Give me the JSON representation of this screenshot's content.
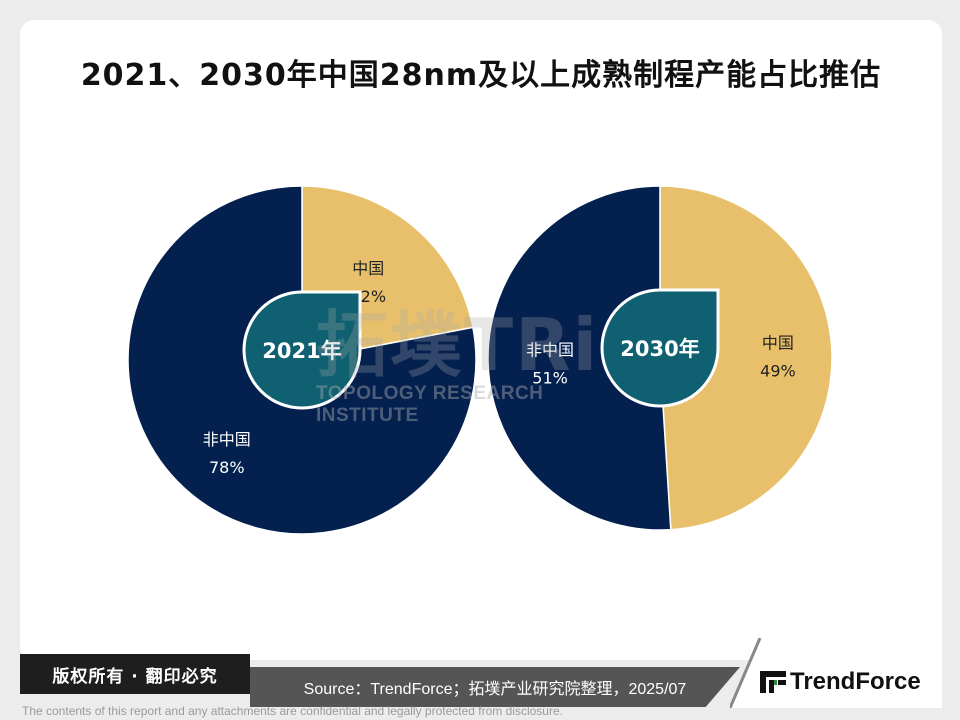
{
  "title": "2021、2030年中国28nm及以上成熟制程产能占比推估",
  "chart_data": [
    {
      "type": "pie",
      "center_label": "2021年",
      "slices": [
        {
          "label": "中国",
          "value": 22,
          "value_label": "22%",
          "color": "#e8c06b"
        },
        {
          "label": "非中国",
          "value": 78,
          "value_label": "78%",
          "color": "#03204f"
        }
      ]
    },
    {
      "type": "pie",
      "center_label": "2030年",
      "slices": [
        {
          "label": "中国",
          "value": 49,
          "value_label": "49%",
          "color": "#e8c06b"
        },
        {
          "label": "非中国",
          "value": 51,
          "value_label": "51%",
          "color": "#03204f"
        }
      ]
    }
  ],
  "center_badge_color": "#0f6070",
  "watermark": {
    "brand": "拓墣TRi",
    "subtitle": "TOPOLOGY RESEARCH INSTITUTE"
  },
  "footer": {
    "copyright": "版权所有 · 翻印必究",
    "source": "Source：TrendForce；拓墣产业研究院整理，2025/07",
    "logo_text": "TrendForce",
    "disclaimer": "The contents of this report and any attachments are confidential and legally protected from disclosure."
  }
}
